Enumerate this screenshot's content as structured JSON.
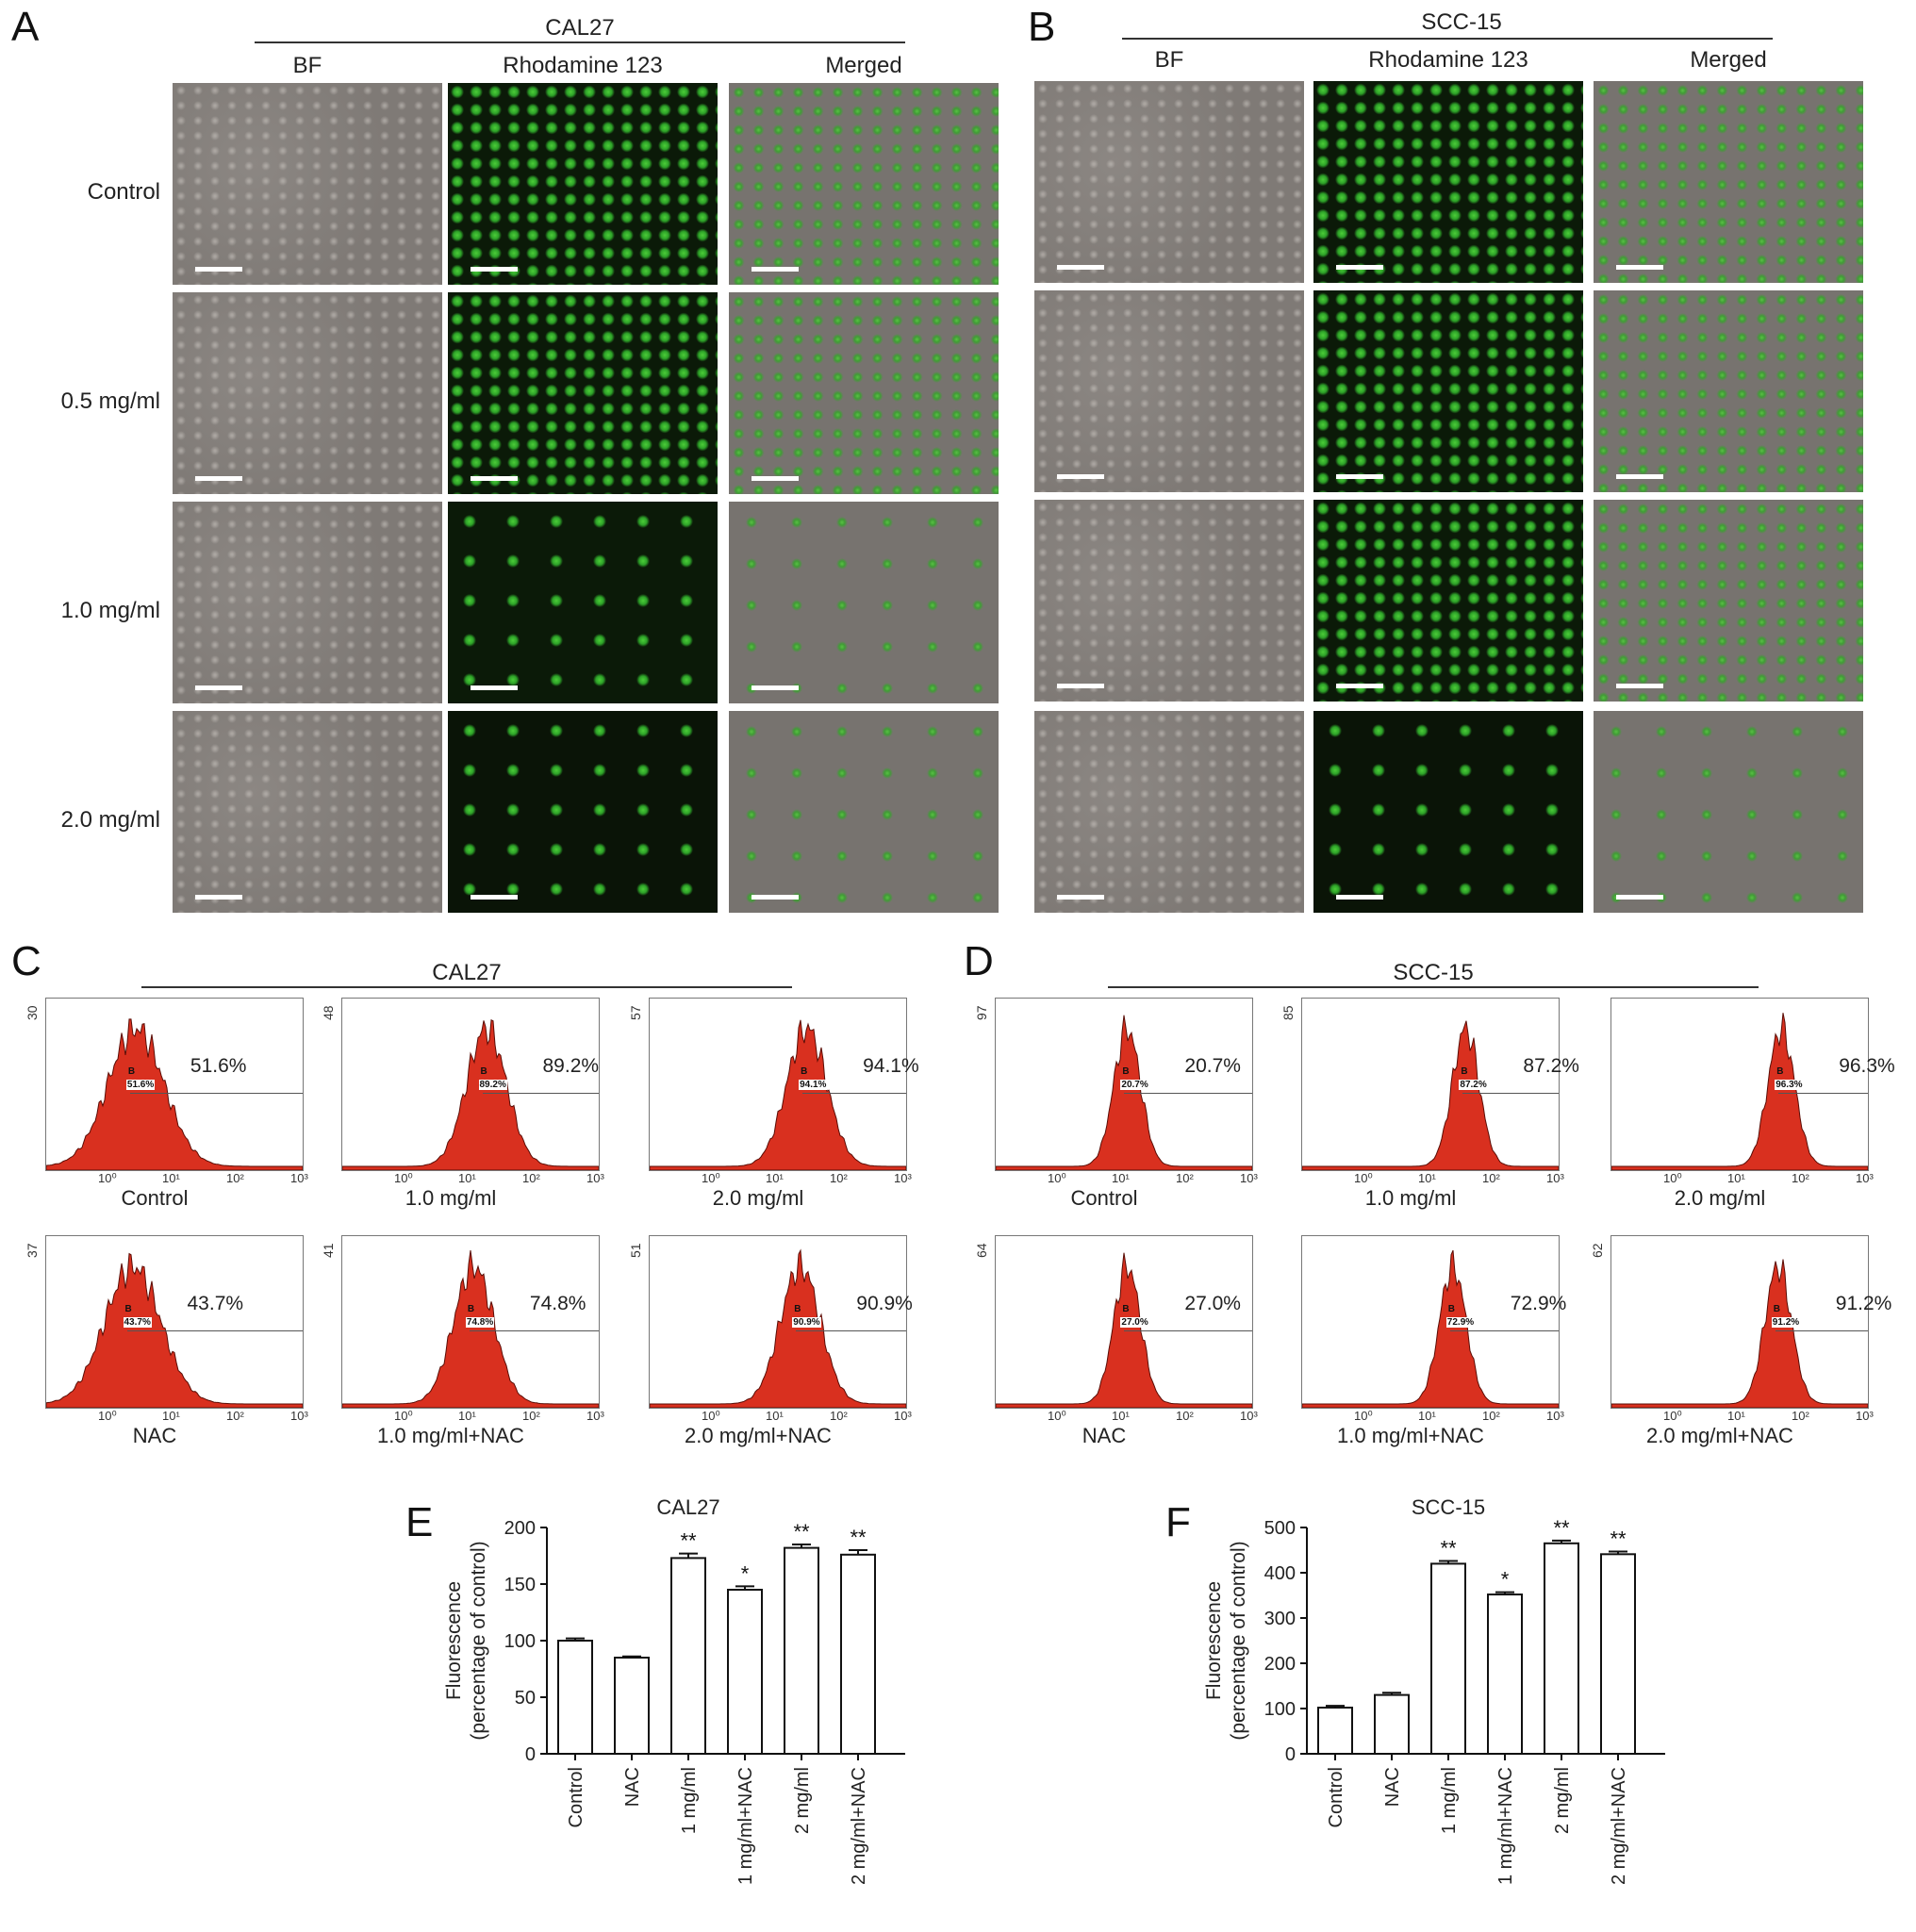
{
  "panel_letters": {
    "A": "A",
    "B": "B",
    "C": "C",
    "D": "D",
    "E": "E",
    "F": "F"
  },
  "microscopy": {
    "A": {
      "title": "CAL27",
      "columns": [
        "BF",
        "Rhodamine 123",
        "Merged"
      ]
    },
    "B": {
      "title": "SCC-15",
      "columns": [
        "BF",
        "Rhodamine 123",
        "Merged"
      ]
    },
    "rows": [
      "Control",
      "0.5 mg/ml",
      "1.0 mg/ml",
      "2.0 mg/ml"
    ]
  },
  "flow": {
    "C": {
      "title": "CAL27",
      "histograms": [
        {
          "name": "Control",
          "ymax": "30",
          "pct": "51.6%",
          "gate_value": "51.6%",
          "peak": 0.4
        },
        {
          "name": "1.0 mg/ml",
          "ymax": "48",
          "pct": "89.2%",
          "gate_value": "89.2%",
          "peak": 1.25
        },
        {
          "name": "2.0 mg/ml",
          "ymax": "57",
          "pct": "94.1%",
          "gate_value": "94.1%",
          "peak": 1.45
        },
        {
          "name": "NAC",
          "ymax": "37",
          "pct": "43.7%",
          "gate_value": "43.7%",
          "peak": 0.35
        },
        {
          "name": "1.0 mg/ml+NAC",
          "ymax": "41",
          "pct": "74.8%",
          "gate_value": "74.8%",
          "peak": 1.05
        },
        {
          "name": "2.0 mg/ml+NAC",
          "ymax": "51",
          "pct": "90.9%",
          "gate_value": "90.9%",
          "peak": 1.35
        }
      ]
    },
    "D": {
      "title": "SCC-15",
      "histograms": [
        {
          "name": "Control",
          "ymax": "97",
          "pct": "20.7%",
          "gate_value": "20.7%",
          "peak": 1.05
        },
        {
          "name": "1.0 mg/ml",
          "ymax": "85",
          "pct": "87.2%",
          "gate_value": "87.2%",
          "peak": 1.55
        },
        {
          "name": "2.0 mg/ml",
          "ymax": "",
          "pct": "96.3%",
          "gate_value": "96.3%",
          "peak": 1.65
        },
        {
          "name": "NAC",
          "ymax": "64",
          "pct": "27.0%",
          "gate_value": "27.0%",
          "peak": 1.05
        },
        {
          "name": "1.0 mg/ml+NAC",
          "ymax": "",
          "pct": "72.9%",
          "gate_value": "72.9%",
          "peak": 1.35
        },
        {
          "name": "2.0 mg/ml+NAC",
          "ymax": "62",
          "pct": "91.2%",
          "gate_value": "91.2%",
          "peak": 1.6
        }
      ]
    },
    "gate_label": "B",
    "x_ticks": [
      "10⁰",
      "10¹",
      "10²",
      "10³"
    ]
  },
  "chart_data": [
    {
      "type": "bar",
      "panel": "E",
      "title": "CAL27",
      "ylabel": "Fluorescence\n(percentage of control)",
      "categories": [
        "Control",
        "NAC",
        "1 mg/ml",
        "1 mg/ml+NAC",
        "2 mg/ml",
        "2 mg/ml+NAC"
      ],
      "values": [
        100,
        85,
        173,
        145,
        182,
        176
      ],
      "errors": [
        2,
        1,
        4,
        3,
        3,
        4
      ],
      "significance": [
        "",
        "",
        "**",
        "*",
        "**",
        "**"
      ],
      "ylim": [
        0,
        200
      ],
      "yticks": [
        0,
        50,
        100,
        150,
        200
      ]
    },
    {
      "type": "bar",
      "panel": "F",
      "title": "SCC-15",
      "ylabel": "Fluorescence\n(percentage of control)",
      "categories": [
        "Control",
        "NAC",
        "1 mg/ml",
        "1 mg/ml+NAC",
        "2 mg/ml",
        "2 mg/ml+NAC"
      ],
      "values": [
        102,
        130,
        420,
        352,
        465,
        441
      ],
      "errors": [
        4,
        5,
        6,
        5,
        6,
        6
      ],
      "significance": [
        "",
        "",
        "**",
        "*",
        "**",
        "**"
      ],
      "ylim": [
        0,
        500
      ],
      "yticks": [
        0,
        100,
        200,
        300,
        400,
        500
      ]
    }
  ]
}
